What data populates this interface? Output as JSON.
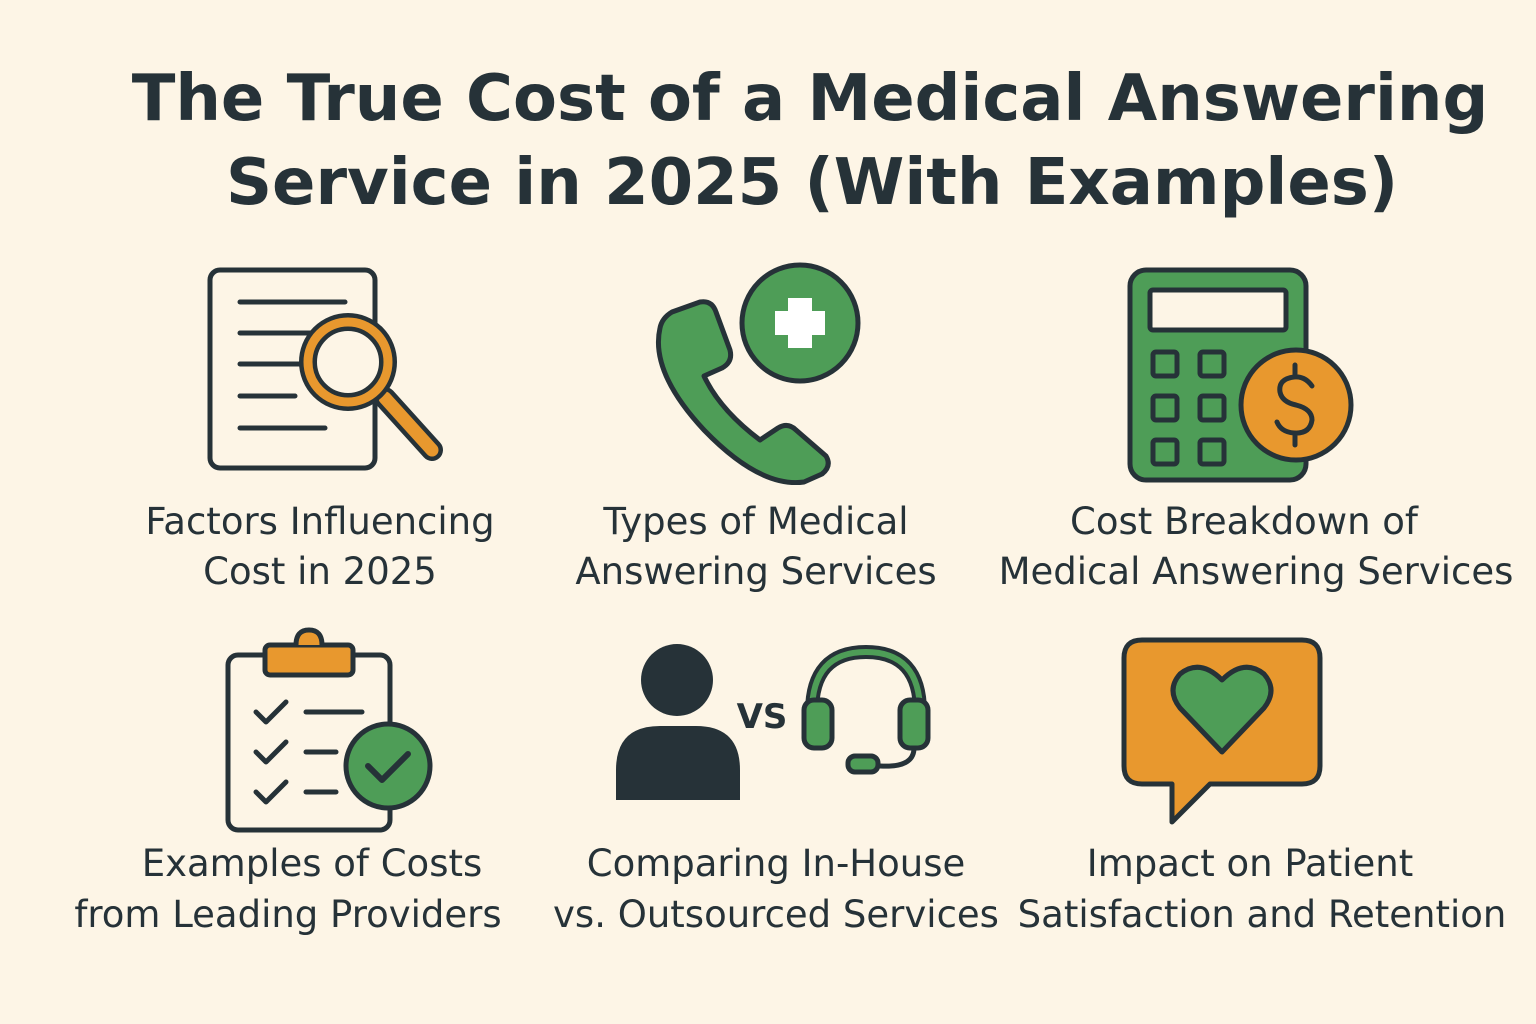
{
  "header": {
    "title": [
      "The True Cost of a Medical Answering",
      "Service in 2025 (With Examples)"
    ]
  },
  "items": [
    {
      "label": [
        "Factors Influencing",
        "Cost in 2025"
      ]
    },
    {
      "label": [
        "Types of Medical",
        "Answering Services"
      ]
    },
    {
      "label": [
        "Cost Breakdown of",
        "Medical Answering Services"
      ]
    },
    {
      "label": [
        "Examples of Costs",
        "from Leading Providers"
      ]
    },
    {
      "label": [
        "Comparing In-House",
        "vs. Outsourced Services"
      ],
      "icon_text": "VS"
    },
    {
      "label": [
        "Impact on Patient",
        "Satisfaction and Retention"
      ]
    }
  ]
}
